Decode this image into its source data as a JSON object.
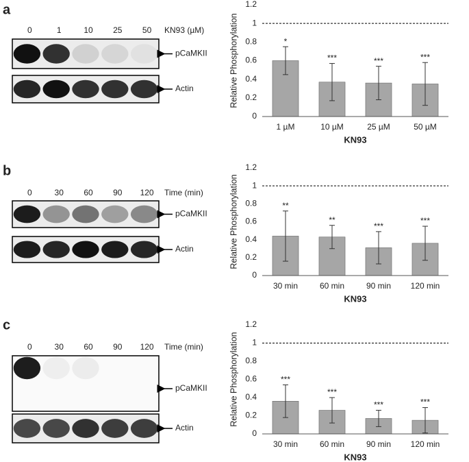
{
  "blots": [
    {
      "panel": "a",
      "lanes": [
        "0",
        "1",
        "10",
        "25",
        "50"
      ],
      "treatment": "KN93 (µM)",
      "bands": [
        "pCaMKII",
        "Actin"
      ]
    },
    {
      "panel": "b",
      "lanes": [
        "0",
        "30",
        "60",
        "90",
        "120"
      ],
      "treatment": "Time (min)",
      "bands": [
        "pCaMKII",
        "Actin"
      ]
    },
    {
      "panel": "c",
      "lanes": [
        "0",
        "30",
        "60",
        "90",
        "120"
      ],
      "treatment": "Time (min)",
      "bands": [
        "pCaMKII",
        "Actin"
      ]
    }
  ],
  "chart_data": [
    {
      "type": "bar",
      "xlabel": "KN93",
      "ylabel": "Relative Phosphorylation",
      "color": "#a6a6a6",
      "categories": [
        "1 µM",
        "10 µM",
        "25 µM",
        "50 µM"
      ],
      "values": [
        0.6,
        0.37,
        0.36,
        0.35
      ],
      "errors": [
        0.15,
        0.2,
        0.18,
        0.23
      ],
      "annotations": [
        "*",
        "***",
        "***",
        "***"
      ],
      "reference_line": 1,
      "ylim": [
        0,
        1.2
      ],
      "yticks": [
        0,
        0.2,
        0.4,
        0.6,
        0.8,
        1,
        1.2
      ]
    },
    {
      "type": "bar",
      "xlabel": "KN93",
      "ylabel": "Relative Phosphorylation",
      "color": "#a6a6a6",
      "categories": [
        "30 min",
        "60 min",
        "90 min",
        "120 min"
      ],
      "values": [
        0.44,
        0.43,
        0.31,
        0.36
      ],
      "errors": [
        0.28,
        0.13,
        0.18,
        0.19
      ],
      "annotations": [
        "**",
        "**",
        "***",
        "***"
      ],
      "reference_line": 1,
      "ylim": [
        0,
        1.2
      ],
      "yticks": [
        0,
        0.2,
        0.4,
        0.6,
        0.8,
        1,
        1.2
      ]
    },
    {
      "type": "bar",
      "xlabel": "KN93",
      "ylabel": "Relative Phosphorylation",
      "color": "#a6a6a6",
      "categories": [
        "30 min",
        "60 min",
        "90 min",
        "120 min"
      ],
      "values": [
        0.36,
        0.26,
        0.17,
        0.15
      ],
      "errors": [
        0.18,
        0.14,
        0.09,
        0.14
      ],
      "annotations": [
        "***",
        "***",
        "***",
        "***"
      ],
      "reference_line": 1,
      "ylim": [
        0,
        1.2
      ],
      "yticks": [
        0,
        0.2,
        0.4,
        0.6,
        0.8,
        1,
        1.2
      ]
    }
  ]
}
